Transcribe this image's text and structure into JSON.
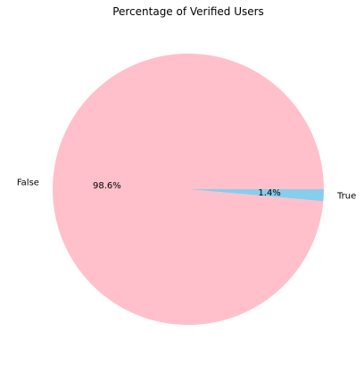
{
  "chart_data": {
    "type": "pie",
    "title": "Percentage of Verified Users",
    "slices": [
      {
        "label": "False",
        "value": 98.6,
        "pct_label": "98.6%",
        "color": "#FFC0CB"
      },
      {
        "label": "True",
        "value": 1.4,
        "pct_label": "1.4%",
        "color": "#87CEEB"
      }
    ],
    "start_angle_deg": 0,
    "direction": "counterclockwise"
  }
}
